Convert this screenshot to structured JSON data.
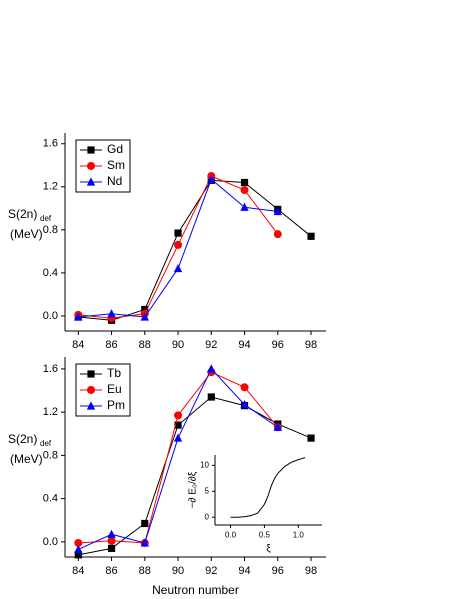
{
  "chart_data": [
    {
      "type": "line",
      "ylabel": "S(2n)",
      "ylabel_sub": "def",
      "ylabel_unit": "(MeV)",
      "x": [
        84,
        86,
        88,
        90,
        92,
        94,
        96,
        98
      ],
      "xlim": [
        83.2,
        98.9
      ],
      "xticks": [
        84,
        86,
        88,
        90,
        92,
        94,
        96,
        98
      ],
      "ylim": [
        -0.14,
        1.7
      ],
      "yticks": [
        {
          "value": 0,
          "label": "0.0"
        },
        0.4,
        0.8,
        1.2,
        1.6
      ],
      "legend": "upper-left",
      "series": [
        {
          "name": "Gd",
          "color": "#000000",
          "marker": "square",
          "values": [
            -0.01,
            -0.04,
            0.06,
            0.77,
            1.26,
            1.24,
            0.99,
            0.74
          ]
        },
        {
          "name": "Sm",
          "color": "#ff0000",
          "marker": "circle",
          "values": [
            0.01,
            -0.02,
            0.02,
            0.66,
            1.3,
            1.17,
            0.76,
            null
          ]
        },
        {
          "name": "Nd",
          "color": "#0000ff",
          "marker": "triangle",
          "values": [
            -0.01,
            0.02,
            -0.01,
            0.44,
            1.27,
            1.01,
            0.97,
            null
          ]
        }
      ]
    },
    {
      "type": "line",
      "ylabel": "S(2n)",
      "ylabel_sub": "def",
      "ylabel_unit": "(MeV)",
      "xlabel": "Neutron number",
      "x": [
        84,
        86,
        88,
        90,
        92,
        94,
        96,
        98
      ],
      "xlim": [
        83.2,
        98.9
      ],
      "xticks": [
        84,
        86,
        88,
        90,
        92,
        94,
        96,
        98
      ],
      "ylim": [
        -0.14,
        1.71
      ],
      "yticks": [
        {
          "value": 0,
          "label": "0.0"
        },
        0.4,
        0.8,
        1.2,
        1.6
      ],
      "legend": "upper-left",
      "series": [
        {
          "name": "Tb",
          "color": "#000000",
          "marker": "square",
          "values": [
            -0.12,
            -0.06,
            0.17,
            1.08,
            1.34,
            1.26,
            1.09,
            0.96
          ]
        },
        {
          "name": "Eu",
          "color": "#ff0000",
          "marker": "circle",
          "values": [
            -0.01,
            0.01,
            -0.01,
            1.17,
            1.57,
            1.43,
            1.06,
            null
          ]
        },
        {
          "name": "Pm",
          "color": "#0000ff",
          "marker": "triangle",
          "values": [
            -0.07,
            0.07,
            -0.01,
            0.96,
            1.6,
            1.27,
            1.06,
            null
          ]
        }
      ]
    },
    {
      "type": "line",
      "ylabel": "−∂ E₀/∂ξ",
      "xlabel": "ξ",
      "x": [
        0,
        0.1,
        0.2,
        0.3,
        0.4,
        0.5,
        0.55,
        0.6,
        0.65,
        0.7,
        0.8,
        0.9,
        1.0,
        1.1
      ],
      "xlim": [
        -0.23,
        1.35
      ],
      "xticks": [
        {
          "value": 0,
          "label": "0.0"
        },
        0.5,
        {
          "value": 1,
          "label": "1.0"
        }
      ],
      "ylim": [
        -1.5,
        12
      ],
      "yticks": [
        0,
        5,
        10
      ],
      "series": [
        {
          "color": "#000000",
          "values": [
            0,
            0,
            0.1,
            0.3,
            0.8,
            2.5,
            4,
            6,
            7.5,
            8.5,
            9.8,
            10.6,
            11.1,
            11.5
          ]
        }
      ]
    }
  ]
}
